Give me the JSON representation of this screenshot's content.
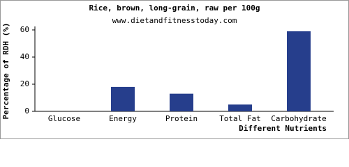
{
  "chart_data": {
    "type": "bar",
    "title": "Rice, brown, long-grain, raw per 100g",
    "subtitle": "www.dietandfitnesstoday.com",
    "y_label": "Percentage of RDH (%)",
    "x_label": "Different Nutrients",
    "categories": [
      "Glucose",
      "Energy",
      "Protein",
      "Total Fat",
      "Carbohydrate"
    ],
    "values": [
      0,
      18,
      13,
      5,
      59
    ],
    "color": "#263e8c",
    "ylim": [
      0,
      60
    ],
    "yticks": [
      0,
      20,
      40,
      60
    ],
    "grid": false
  }
}
